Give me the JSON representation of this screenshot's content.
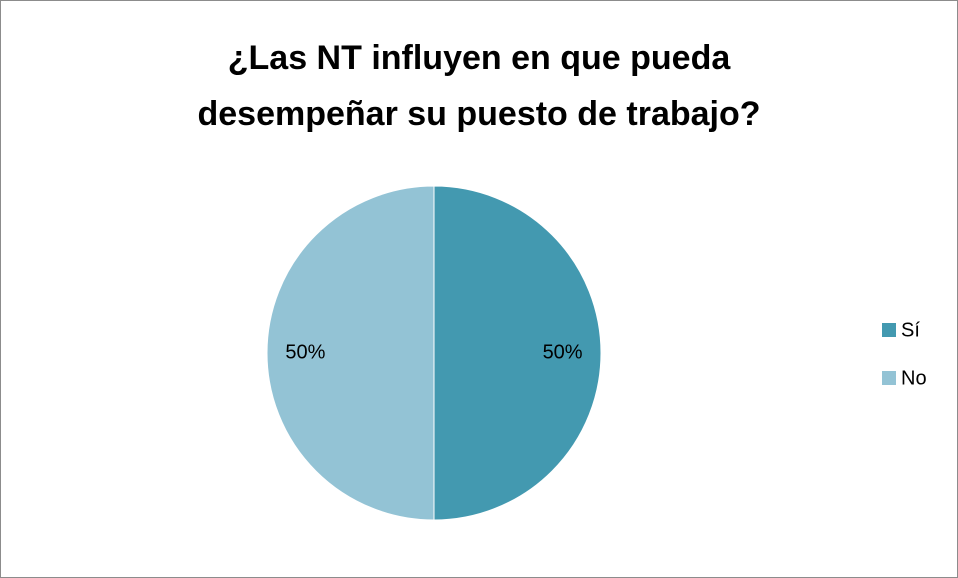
{
  "chart_data": {
    "type": "pie",
    "title": "¿Las NT influyen en que pueda desempeñar su puesto de trabajo?",
    "categories": [
      "Sí",
      "No"
    ],
    "values": [
      50,
      50
    ],
    "value_labels": [
      "50%",
      "50%"
    ],
    "colors": [
      "#4399b0",
      "#93c3d5"
    ],
    "legend": "right"
  }
}
